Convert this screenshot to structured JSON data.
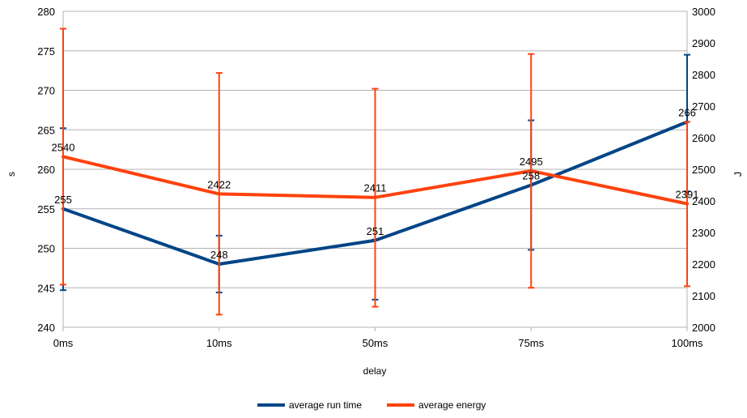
{
  "chart_data": {
    "type": "line",
    "categories": [
      "0ms",
      "10ms",
      "50ms",
      "75ms",
      "100ms"
    ],
    "xlabel": "delay",
    "ylabel_left": "s",
    "ylabel_right": "J",
    "ylim_left": [
      240,
      280
    ],
    "yticks_left": [
      240,
      245,
      250,
      255,
      260,
      265,
      270,
      275,
      280
    ],
    "ylim_right": [
      2000,
      3000
    ],
    "yticks_right": [
      2000,
      2100,
      2200,
      2300,
      2400,
      2500,
      2600,
      2700,
      2800,
      2900,
      3000
    ],
    "grid": true,
    "legend_position": "bottom",
    "series": [
      {
        "name": "average run time",
        "axis": "left",
        "color": "#004586",
        "values": [
          255,
          248,
          251,
          258,
          266
        ],
        "labels": [
          "255",
          "248",
          "251",
          "258",
          "266"
        ],
        "error_low": [
          244.7,
          244.4,
          243.5,
          249.8,
          257.2
        ],
        "error_high": [
          265.2,
          251.6,
          251.1,
          266.2,
          274.5
        ]
      },
      {
        "name": "average energy",
        "axis": "right",
        "color": "#ff420e",
        "values": [
          2540,
          2422,
          2411,
          2495,
          2391
        ],
        "labels": [
          "2540",
          "2422",
          "2411",
          "2495",
          "2391"
        ],
        "error_low": [
          2135,
          2040,
          2065,
          2125,
          2130
        ],
        "error_high": [
          2945,
          2805,
          2755,
          2865,
          2650
        ]
      }
    ]
  }
}
